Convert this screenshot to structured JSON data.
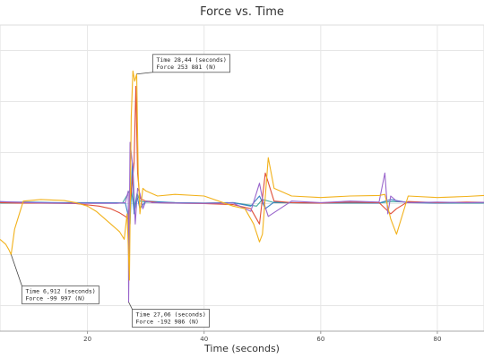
{
  "chart_data": {
    "type": "line",
    "title": "Force vs. Time",
    "xlabel": "Time (seconds)",
    "ylabel": "",
    "xlim": [
      5,
      88
    ],
    "ylim": [
      -250000,
      350000
    ],
    "grid": true,
    "x_ticks": [
      20,
      40,
      60,
      80
    ],
    "colors": [
      "#f2b21c",
      "#9a66cc",
      "#e0503a",
      "#3a82c4",
      "#40a8a0"
    ],
    "series": [
      {
        "x": [
          5,
          6,
          6.5,
          6.912,
          7.5,
          9,
          12,
          16,
          18,
          20,
          21.5,
          22.5,
          24,
          25.5,
          26.3,
          26.8,
          27.2,
          27.5,
          27.8,
          28.1,
          28.44,
          28.7,
          29,
          29.5,
          30,
          31,
          32,
          35,
          40,
          45,
          47,
          48.5,
          49.5,
          50,
          51,
          52,
          55,
          60,
          65,
          70,
          71,
          72,
          73,
          75,
          80,
          85,
          88
        ],
        "values": [
          -70000,
          -80000,
          -90000,
          -99997,
          -50000,
          5000,
          8000,
          6000,
          2000,
          -5000,
          -15000,
          -25000,
          -40000,
          -55000,
          -70000,
          -20000,
          -150000,
          170000,
          260000,
          240000,
          253881,
          60000,
          -20000,
          30000,
          25000,
          20000,
          15000,
          18000,
          15000,
          -5000,
          -10000,
          -40000,
          -75000,
          -60000,
          90000,
          30000,
          15000,
          12000,
          15000,
          16000,
          18000,
          -30000,
          -60000,
          15000,
          12000,
          14000,
          16000
        ]
      },
      {
        "x": [
          5,
          10,
          15,
          20,
          25,
          26.5,
          27,
          27.06,
          27.3,
          27.8,
          28.2,
          28.6,
          29,
          29.5,
          30,
          31,
          35,
          40,
          45,
          48,
          49.5,
          50,
          51,
          55,
          60,
          65,
          70,
          71,
          71.5,
          72,
          73,
          75,
          80,
          85,
          88
        ],
        "values": [
          4000,
          2000,
          1000,
          500,
          500,
          2000,
          25000,
          -192986,
          120000,
          70000,
          -40000,
          30000,
          20000,
          -10000,
          5000,
          2000,
          1000,
          500,
          1000,
          -15000,
          40000,
          10000,
          -25000,
          5000,
          2000,
          5000,
          3000,
          60000,
          -20000,
          15000,
          5000,
          2000,
          3000,
          2000,
          2500
        ]
      },
      {
        "x": [
          5,
          8,
          12,
          18,
          22,
          24,
          25.5,
          26.5,
          27,
          27.5,
          28,
          28.3,
          28.6,
          29,
          30,
          32,
          35,
          40,
          45,
          48,
          49.5,
          50.5,
          52,
          55,
          60,
          65,
          70,
          72,
          73,
          75,
          80,
          85,
          88
        ],
        "values": [
          2000,
          1000,
          1000,
          0,
          -5000,
          -10000,
          -18000,
          -25000,
          -30000,
          20000,
          80000,
          230000,
          60000,
          10000,
          5000,
          2000,
          1000,
          0,
          -2000,
          -10000,
          -40000,
          60000,
          5000,
          2000,
          1000,
          3000,
          2000,
          -20000,
          -10000,
          4000,
          2000,
          3000,
          2500
        ]
      },
      {
        "x": [
          5,
          10,
          15,
          20,
          25,
          26.5,
          27.3,
          27.7,
          28,
          28.5,
          29,
          30,
          35,
          40,
          45,
          48,
          49.5,
          50.5,
          52,
          55,
          60,
          65,
          70,
          72,
          75,
          80,
          85,
          88
        ],
        "values": [
          3000,
          3000,
          2000,
          2000,
          1500,
          1000,
          -40000,
          80000,
          -20000,
          15000,
          -10000,
          5000,
          2000,
          1000,
          2000,
          -5000,
          15000,
          -10000,
          3000,
          2000,
          1000,
          2000,
          1000,
          8000,
          2000,
          1000,
          2000,
          1500
        ]
      },
      {
        "x": [
          5,
          10,
          20,
          26,
          27.5,
          28,
          28.5,
          29,
          30,
          35,
          40,
          45,
          49,
          50,
          52,
          60,
          70,
          72,
          80,
          88
        ],
        "values": [
          1000,
          1000,
          1000,
          1000,
          30000,
          -15000,
          20000,
          5000,
          3000,
          2000,
          1000,
          2000,
          -5000,
          8000,
          2000,
          1000,
          1000,
          4000,
          1000,
          1000
        ]
      }
    ],
    "annotations": [
      {
        "time_label": "Time",
        "time_value": "28,44",
        "time_unit": "(seconds)",
        "force_label": "Force",
        "force_value": "253 881",
        "force_unit": "(N)",
        "x": 28.44,
        "y": 253881,
        "placement": "above-right"
      },
      {
        "time_label": "Time",
        "time_value": "6,912",
        "time_unit": "(seconds)",
        "force_label": "Force",
        "force_value": "-99 997",
        "force_unit": "(N)",
        "x": 6.912,
        "y": -99997,
        "placement": "below-right"
      },
      {
        "time_label": "Time",
        "time_value": "27,06",
        "time_unit": "(seconds)",
        "force_label": "Force",
        "force_value": "-192 986",
        "force_unit": "(N)",
        "x": 27.06,
        "y": -192986,
        "placement": "below-right"
      }
    ]
  }
}
